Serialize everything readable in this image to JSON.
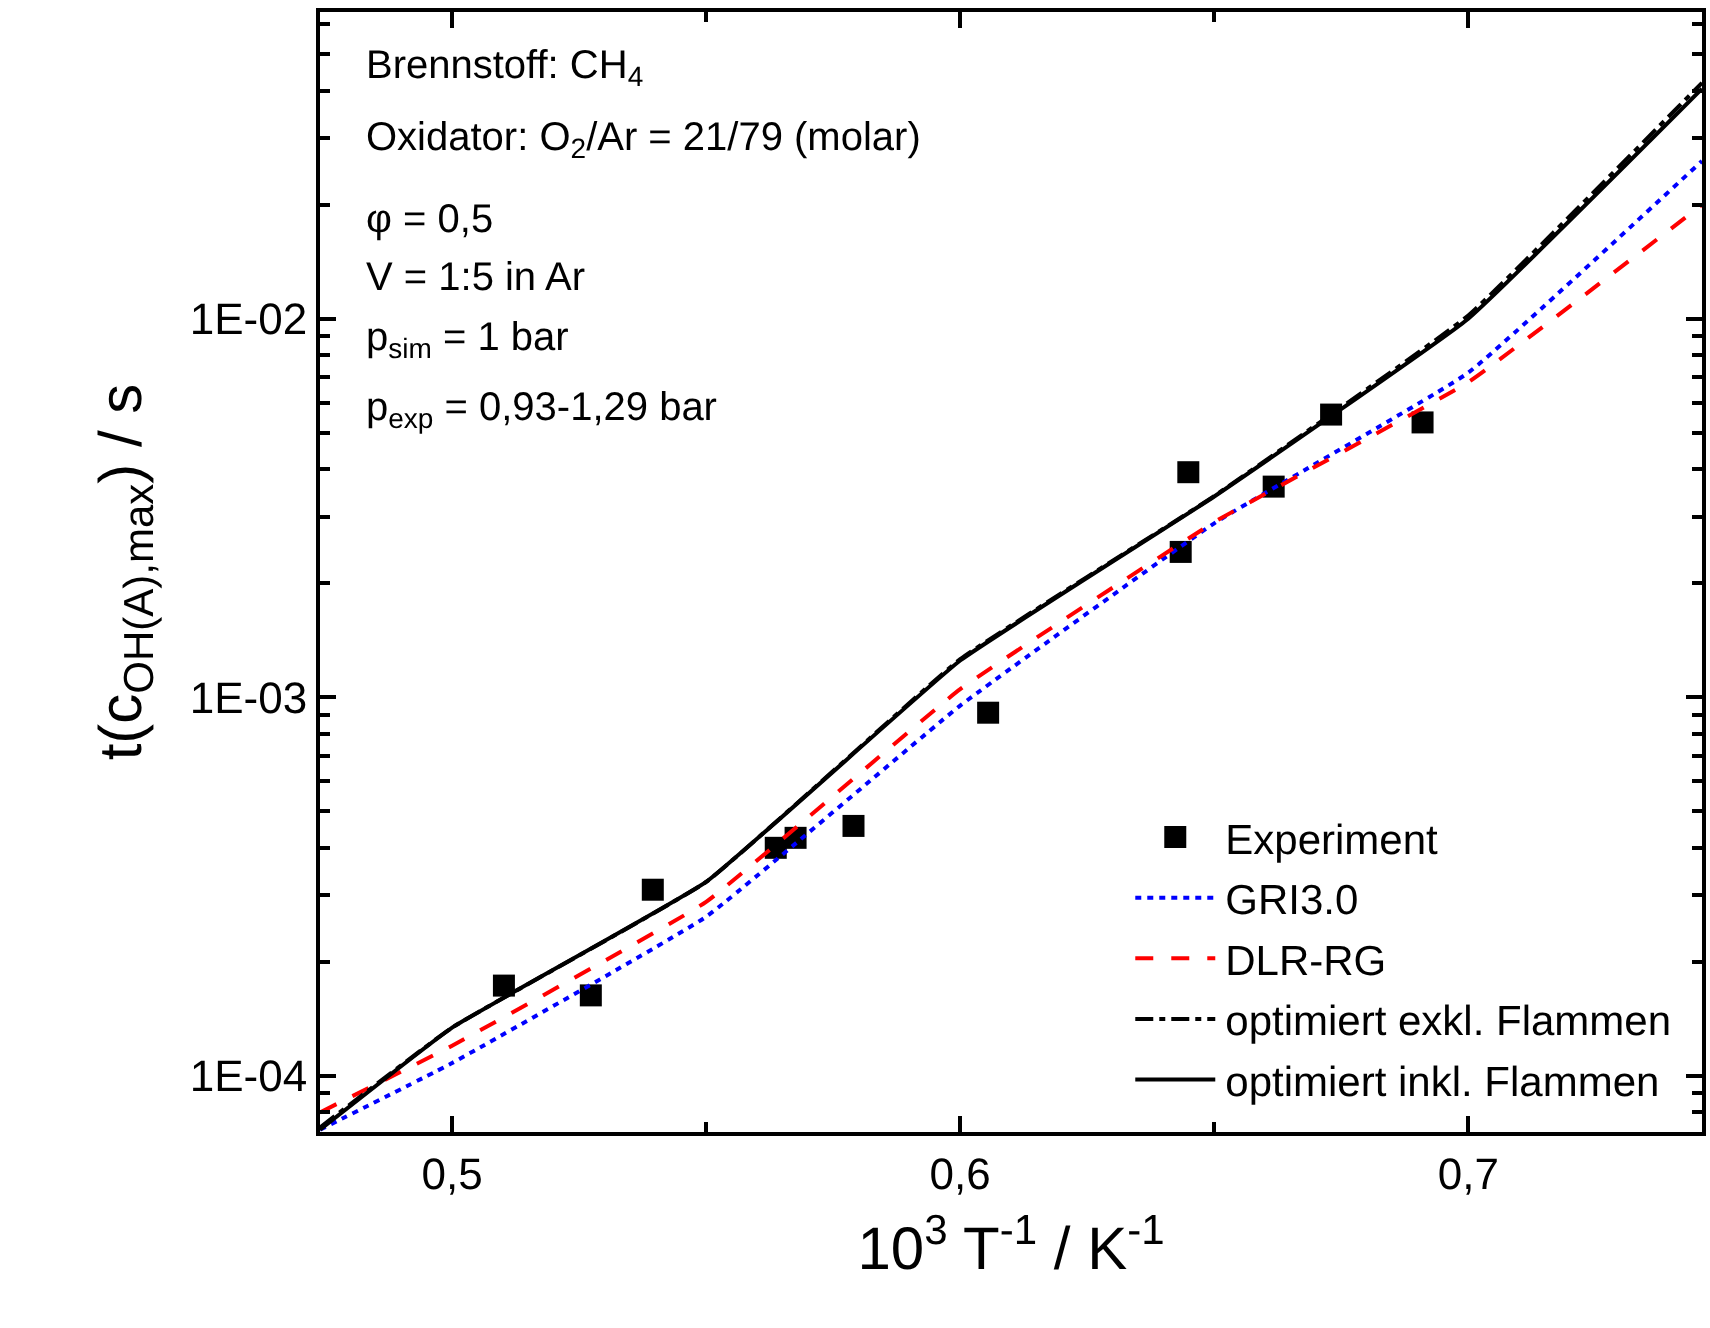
{
  "chart_data": {
    "type": "line",
    "xlabel": "10$^{3}$ T$^{-1}$ / K$^{-1}$",
    "ylabel": "t(c$_{OH(A),max}$) / s",
    "log": "y",
    "grid": false,
    "legend": "bottom right",
    "xlim": [
      0.474,
      0.746
    ],
    "xticks": [
      {
        "value": 0.5,
        "label": "0,5"
      },
      {
        "value": 0.6,
        "label": "0,6"
      },
      {
        "value": 0.7,
        "label": "0,7"
      }
    ],
    "ylim": [
      7.1e-05,
      0.0646
    ],
    "yticks": [
      {
        "value": 0.0001,
        "label": "1E-04"
      },
      {
        "value": 0.001,
        "label": "1E-03"
      },
      {
        "value": 0.01,
        "label": "1E-02"
      }
    ],
    "series": [
      {
        "name": "Experiment",
        "type": "scatter",
        "marker": "square",
        "color": "#000000",
        "x": [
          0.5102,
          0.5273,
          0.5395,
          0.5637,
          0.5676,
          0.579,
          0.6055,
          0.6434,
          0.6449,
          0.6617,
          0.673,
          0.691
        ],
        "values": [
          0.000173,
          0.000163,
          0.00031,
          0.0004,
          0.000425,
          0.000457,
          0.00091,
          0.00242,
          0.00393,
          0.0036,
          0.00558,
          0.00532
        ]
      },
      {
        "name": "GRI3.0",
        "line_style": "dotted",
        "color": "#0000ff",
        "x": [
          0.474,
          0.5,
          0.55,
          0.6,
          0.65,
          0.7,
          0.746
        ],
        "values": [
          7.2e-05,
          0.000108,
          0.000263,
          0.00095,
          0.00288,
          0.0072,
          0.0261
        ]
      },
      {
        "name": "DLR-RG",
        "line_style": "dashed",
        "color": "#ff0000",
        "x": [
          0.474,
          0.5,
          0.55,
          0.6,
          0.65,
          0.7,
          0.746
        ],
        "values": [
          8e-05,
          0.00012,
          0.000288,
          0.00105,
          0.0029,
          0.0068,
          0.02
        ]
      },
      {
        "name": "optimiert exkl. Flammen",
        "line_style": "dashdot",
        "color": "#000000",
        "x": [
          0.474,
          0.5,
          0.55,
          0.6,
          0.65,
          0.7,
          0.746
        ],
        "values": [
          7.3e-05,
          0.000134,
          0.000325,
          0.00126,
          0.0034,
          0.0102,
          0.042
        ]
      },
      {
        "name": "optimiert inkl. Flammen",
        "line_style": "solid",
        "color": "#000000",
        "x": [
          0.474,
          0.5,
          0.55,
          0.6,
          0.65,
          0.7,
          0.746
        ],
        "values": [
          7.2e-05,
          0.000134,
          0.000325,
          0.00125,
          0.00339,
          0.01,
          0.0405
        ]
      }
    ],
    "annotations": [
      "Brennstoff: CH$_{4}$",
      "Oxidator: O$_{2}$/Ar = 21/79 (molar)",
      "φ = 0,5",
      "V = 1:5 in Ar",
      "p$_{sim}$ = 1 bar",
      "p$_{exp}$ = 0,93-1,29 bar"
    ]
  }
}
